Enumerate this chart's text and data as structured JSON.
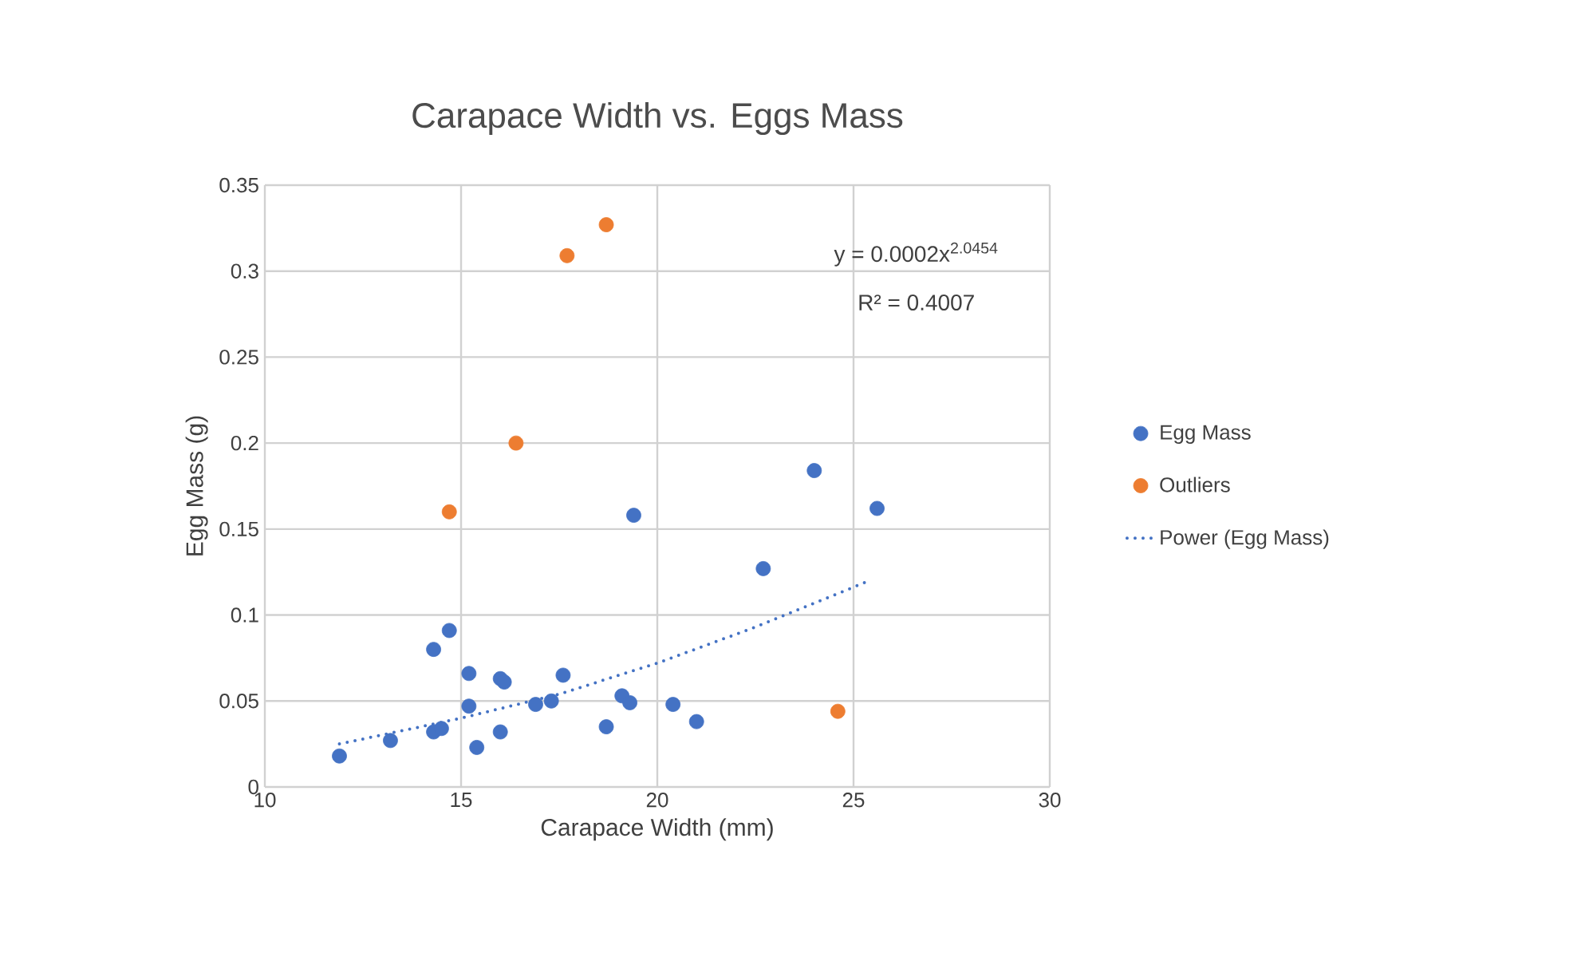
{
  "chart_data": {
    "type": "scatter",
    "title": "Carapace Width vs. Eggs Mass",
    "xlabel": "Carapace Width (mm)",
    "ylabel": "Egg Mass (g)",
    "xlim": [
      10,
      30
    ],
    "xticks": [
      10,
      15,
      20,
      25,
      30
    ],
    "ylim": [
      0,
      0.35
    ],
    "yticks": [
      0,
      0.05,
      0.1,
      0.15,
      0.2,
      0.25,
      0.3,
      0.35
    ],
    "grid": true,
    "legend": "right",
    "marker": "circle",
    "annotations": [
      "y = 0.0002x$^{2.0454}$",
      "R² = 0.4007"
    ],
    "series": [
      {
        "name": "Egg Mass",
        "color": "#4472c4",
        "x": [
          11.9,
          13.2,
          14.3,
          14.5,
          14.3,
          14.7,
          15.2,
          15.2,
          15.4,
          16.0,
          16.1,
          16.0,
          16.9,
          17.3,
          17.6,
          19.4,
          19.1,
          19.3,
          18.7,
          20.4,
          21.0,
          22.7,
          24.0,
          25.6
        ],
        "values": [
          0.018,
          0.027,
          0.032,
          0.034,
          0.08,
          0.091,
          0.066,
          0.047,
          0.023,
          0.063,
          0.061,
          0.032,
          0.048,
          0.05,
          0.065,
          0.158,
          0.053,
          0.049,
          0.035,
          0.048,
          0.038,
          0.127,
          0.184,
          0.162
        ]
      },
      {
        "name": "Outliers",
        "color": "#ed7d31",
        "x": [
          14.7,
          16.4,
          17.7,
          18.7,
          24.6
        ],
        "values": [
          0.16,
          0.2,
          0.309,
          0.327,
          0.044
        ]
      },
      {
        "name": "Power (Egg Mass)",
        "type": "line",
        "color": "#4472c4",
        "marker": "none",
        "line_style": "dotted",
        "x": [
          11.9,
          15,
          17.5,
          20,
          22.5,
          25.3
        ],
        "values": [
          0.025,
          0.04,
          0.054,
          0.072,
          0.093,
          0.119
        ]
      }
    ]
  }
}
